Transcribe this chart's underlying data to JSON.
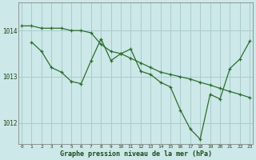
{
  "title": "Graphe pression niveau de la mer (hPa)",
  "background_color": "#cce8e8",
  "grid_color": "#aacccc",
  "line_color": "#2d6e2d",
  "xlim": [
    -0.3,
    23.3
  ],
  "ylim": [
    1011.55,
    1014.6
  ],
  "xticks": [
    0,
    1,
    2,
    3,
    4,
    5,
    6,
    7,
    8,
    9,
    10,
    11,
    12,
    13,
    14,
    15,
    16,
    17,
    18,
    19,
    20,
    21,
    22,
    23
  ],
  "yticks": [
    1012,
    1013,
    1014
  ],
  "series1_x": [
    0,
    1,
    2,
    3,
    4,
    5,
    6,
    7,
    8,
    9,
    10,
    11,
    12,
    13,
    14,
    15,
    16,
    17,
    18,
    19,
    20,
    21,
    22,
    23
  ],
  "series1_y": [
    1014.1,
    1014.1,
    1014.05,
    1014.05,
    1014.05,
    1014.0,
    1014.0,
    1013.95,
    1013.7,
    1013.55,
    1013.5,
    1013.4,
    1013.3,
    1013.2,
    1013.1,
    1013.05,
    1013.0,
    1012.95,
    1012.88,
    1012.82,
    1012.75,
    1012.68,
    1012.62,
    1012.55
  ],
  "series2_x": [
    1,
    2,
    3,
    4,
    5,
    6,
    7,
    8,
    9,
    10,
    11,
    12,
    13,
    14,
    15,
    16,
    17,
    18,
    19,
    20,
    21,
    22,
    23
  ],
  "series2_y": [
    1013.75,
    1013.55,
    1013.2,
    1013.1,
    1012.9,
    1012.85,
    1013.35,
    1013.82,
    1013.35,
    1013.5,
    1013.6,
    1013.12,
    1013.05,
    1012.88,
    1012.78,
    1012.28,
    1011.87,
    1011.65,
    1012.62,
    1012.52,
    1013.18,
    1013.38,
    1013.77
  ]
}
